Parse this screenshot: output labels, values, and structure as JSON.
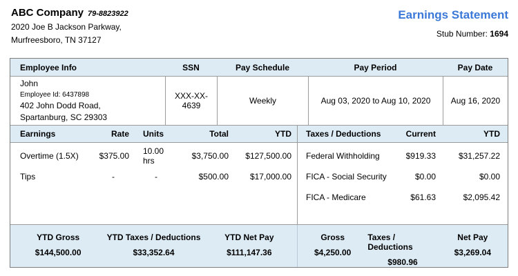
{
  "company": {
    "name": "ABC Company",
    "ein": "79-8823922",
    "address_line1": "2020 Joe B Jackson Parkway,",
    "address_line2": "Murfreesboro, TN 37127"
  },
  "header": {
    "title": "Earnings Statement",
    "stub_label": "Stub Number:",
    "stub_number": "1694"
  },
  "employee_table": {
    "headers": [
      "Employee Info",
      "SSN",
      "Pay Schedule",
      "Pay Period",
      "Pay Date"
    ],
    "employee": {
      "name": "John",
      "id_line": "Employee Id: 6437898",
      "address_line1": "402 John Dodd Road,",
      "address_line2": "Spartanburg, SC 29303"
    },
    "ssn": "XXX-XX-4639",
    "pay_schedule": "Weekly",
    "pay_period": "Aug 03, 2020 to Aug 10, 2020",
    "pay_date": "Aug 16, 2020"
  },
  "earnings_table": {
    "headers": [
      "Earnings",
      "Rate",
      "Units",
      "Total",
      "YTD"
    ],
    "rows": [
      {
        "name": "Overtime (1.5X)",
        "rate": "$375.00",
        "units": "10.00 hrs",
        "total": "$3,750.00",
        "ytd": "$127,500.00"
      },
      {
        "name": "Tips",
        "rate": "-",
        "units": "-",
        "total": "$500.00",
        "ytd": "$17,000.00"
      }
    ]
  },
  "deductions_table": {
    "headers": [
      "Taxes / Deductions",
      "Current",
      "YTD"
    ],
    "rows": [
      {
        "name": "Federal Withholding",
        "current": "$919.33",
        "ytd": "$31,257.22"
      },
      {
        "name": "FICA - Social Security",
        "current": "$0.00",
        "ytd": "$0.00"
      },
      {
        "name": "FICA - Medicare",
        "current": "$61.63",
        "ytd": "$2,095.42"
      }
    ]
  },
  "summary": {
    "items": [
      {
        "label": "YTD Gross",
        "value": "$144,500.00"
      },
      {
        "label": "YTD Taxes / Deductions",
        "value": "$33,352.64"
      },
      {
        "label": "YTD Net Pay",
        "value": "$111,147.36"
      },
      {
        "label": "Gross",
        "value": "$4,250.00"
      },
      {
        "label": "Taxes / Deductions",
        "value": "$980.96"
      },
      {
        "label": "Net Pay",
        "value": "$3,269.04"
      }
    ]
  },
  "colors": {
    "accent_blue": "#3b78d8",
    "band_background": "#ddebf5",
    "border_gray": "#9b9b9b"
  }
}
